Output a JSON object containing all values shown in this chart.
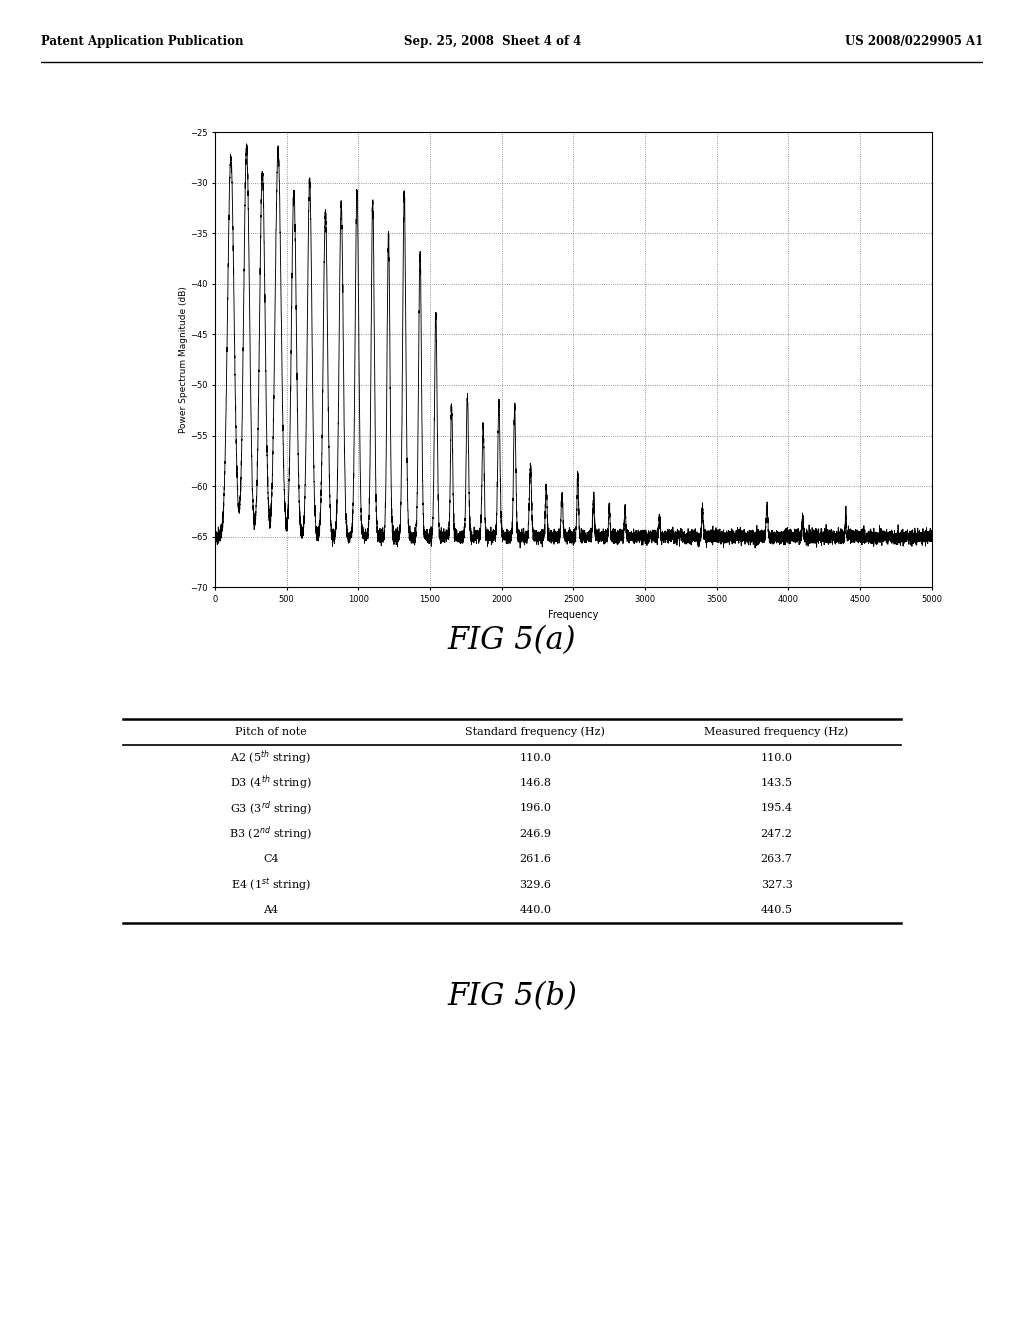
{
  "header_left": "Patent Application Publication",
  "header_center": "Sep. 25, 2008  Sheet 4 of 4",
  "header_right": "US 2008/0229905 A1",
  "plot_ylabel": "Power Spectrum Magnitude (dB)",
  "plot_xlabel": "Frequency",
  "plot_xlim": [
    0,
    5000
  ],
  "plot_ylim": [
    -70,
    -25
  ],
  "plot_yticks": [
    -70,
    -65,
    -60,
    -55,
    -50,
    -45,
    -40,
    -35,
    -30,
    -25
  ],
  "plot_xticks": [
    0,
    500,
    1000,
    1500,
    2000,
    2500,
    3000,
    3500,
    4000,
    4500,
    5000
  ],
  "table_col_headers": [
    "Pitch of note",
    "Standard frequency (Hz)",
    "Measured frequency (Hz)"
  ],
  "table_rows_col1": [
    "A2 (5$^{th}$ string)",
    "D3 (4$^{th}$ string)",
    "G3 (3$^{rd}$ string)",
    "B3 (2$^{nd}$ string)",
    "C4",
    "E4 (1$^{st}$ string)",
    "A4"
  ],
  "table_rows_col2": [
    "110.0",
    "146.8",
    "196.0",
    "246.9",
    "261.6",
    "329.6",
    "440.0"
  ],
  "table_rows_col3": [
    "110.0",
    "143.5",
    "195.4",
    "247.2",
    "263.7",
    "327.3",
    "440.5"
  ],
  "background_color": "#ffffff"
}
